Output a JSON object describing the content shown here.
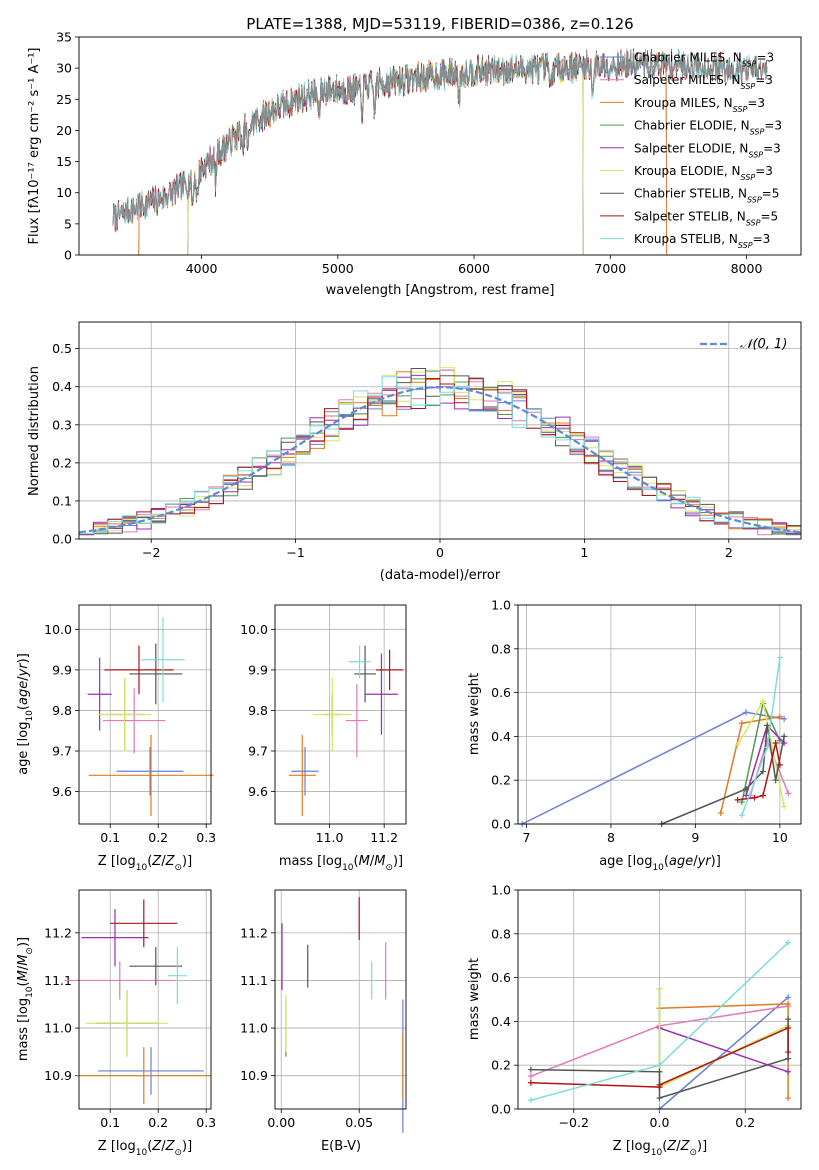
{
  "figure": {
    "title": "PLATE=1388, MJD=53119, FIBERID=0386, z=0.126",
    "colors": {
      "Chabrier MILES": "#6a7fd8",
      "Salpeter MILES": "#e07ab8",
      "Kroupa MILES": "#e07b20",
      "Chabrier ELODIE": "#4f9a4f",
      "Salpeter ELODIE": "#9a2fb4",
      "Kroupa ELODIE": "#d8e560",
      "Chabrier STELIB": "#555555",
      "Salpeter STELIB": "#b01414",
      "Kroupa STELIB": "#7ddbe0"
    },
    "legend_order": [
      "Chabrier MILES",
      "Salpeter MILES",
      "Kroupa MILES",
      "Chabrier ELODIE",
      "Salpeter ELODIE",
      "Kroupa ELODIE",
      "Chabrier STELIB",
      "Salpeter STELIB",
      "Kroupa STELIB"
    ],
    "legend_labels": {
      "Chabrier MILES": [
        "Chabrier MILES, N",
        "SSP",
        "=3"
      ],
      "Salpeter MILES": [
        "Salpeter MILES, N",
        "SSP",
        "=3"
      ],
      "Kroupa MILES": [
        "Kroupa MILES, N",
        "SSP",
        "=3"
      ],
      "Chabrier ELODIE": [
        "Chabrier ELODIE, N",
        "SSP",
        "=3"
      ],
      "Salpeter ELODIE": [
        "Salpeter ELODIE, N",
        "SSP",
        "=3"
      ],
      "Kroupa ELODIE": [
        "Kroupa ELODIE, N",
        "SSP",
        "=3"
      ],
      "Chabrier STELIB": [
        "Chabrier STELIB, N",
        "SSP",
        "=5"
      ],
      "Salpeter STELIB": [
        "Salpeter STELIB, N",
        "SSP",
        "=5"
      ],
      "Kroupa STELIB": [
        "Kroupa STELIB, N",
        "SSP",
        "=3"
      ]
    }
  },
  "chart_data": [
    {
      "id": "spectrum",
      "type": "line",
      "xlabel": "wavelength [Angstrom, rest frame]",
      "ylabel": "Flux [fλ10⁻¹⁷ erg cm⁻² s⁻¹ A⁻¹]",
      "xlim": [
        3100,
        8400
      ],
      "ylim": [
        0,
        35
      ],
      "xticks": [
        4000,
        5000,
        6000,
        7000,
        8000
      ],
      "yticks": [
        0,
        5,
        10,
        15,
        20,
        25,
        30,
        35
      ],
      "data_range": [
        3350,
        8150
      ],
      "continuum": [
        [
          3350,
          6
        ],
        [
          3500,
          7.5
        ],
        [
          3700,
          9
        ],
        [
          3900,
          11.5
        ],
        [
          4100,
          16
        ],
        [
          4300,
          20
        ],
        [
          4500,
          23
        ],
        [
          4700,
          25
        ],
        [
          4900,
          26.5
        ],
        [
          5100,
          26.5
        ],
        [
          5300,
          27.5
        ],
        [
          5600,
          28.5
        ],
        [
          6000,
          29.5
        ],
        [
          6500,
          30
        ],
        [
          7000,
          30.5
        ],
        [
          7500,
          30.5
        ],
        [
          8150,
          29.5
        ]
      ],
      "noise": 2,
      "model_ranges": {
        "Chabrier MILES": [
          3540,
          7410
        ],
        "Salpeter MILES": [
          3540,
          7410
        ],
        "Kroupa MILES": [
          3540,
          7410
        ],
        "Chabrier ELODIE": [
          3900,
          6800
        ],
        "Salpeter ELODIE": [
          3900,
          6800
        ],
        "Kroupa ELODIE": [
          3900,
          6800
        ],
        "Chabrier STELIB": [
          3350,
          8150
        ],
        "Salpeter STELIB": [
          3350,
          8150
        ],
        "Kroupa STELIB": [
          3350,
          8150
        ]
      },
      "legend_position": "right"
    },
    {
      "id": "residuals",
      "type": "histogram",
      "xlabel": "(data-model)/error",
      "ylabel": "Normed distribution",
      "xlim": [
        -2.5,
        2.5
      ],
      "ylim": [
        0,
        0.57
      ],
      "xticks": [
        -2,
        -1,
        0,
        1,
        2
      ],
      "yticks": [
        0.0,
        0.1,
        0.2,
        0.3,
        0.4,
        0.5
      ],
      "bin_width": 0.1,
      "reference_curve": "gaussian N(0,1)",
      "legend": "𝒩(0, 1)",
      "legend_position": "top-right",
      "grid": true
    },
    {
      "id": "age_vs_Z",
      "type": "errorbar",
      "xlabel": "Z [log10(Z/Z⊙)]",
      "ylabel": "age [log10(age/yr)]",
      "xlim": [
        0.035,
        0.31
      ],
      "ylim": [
        9.52,
        10.06
      ],
      "xticks": [
        0.1,
        0.2,
        0.3
      ],
      "yticks": [
        9.6,
        9.7,
        9.8,
        9.9,
        10.0
      ],
      "points": {
        "Chabrier MILES": {
          "x": 0.183,
          "xerr": 0.07,
          "y": 9.65,
          "yerr": 0.06
        },
        "Salpeter MILES": {
          "x": 0.15,
          "xerr": 0.065,
          "y": 9.775,
          "yerr": 0.08
        },
        "Kroupa MILES": {
          "x": 0.185,
          "xerr": 0.13,
          "y": 9.64,
          "yerr": 0.1
        },
        "Chabrier ELODIE": {
          "x": 0.13,
          "xerr": 0.04,
          "y": 9.79,
          "yerr": 0.09
        },
        "Salpeter ELODIE": {
          "x": 0.078,
          "xerr": 0.025,
          "y": 9.84,
          "yerr": 0.09
        },
        "Kroupa ELODIE": {
          "x": 0.13,
          "xerr": 0.055,
          "y": 9.79,
          "yerr": 0.09
        },
        "Chabrier STELIB": {
          "x": 0.195,
          "xerr": 0.055,
          "y": 9.89,
          "yerr": 0.075
        },
        "Salpeter STELIB": {
          "x": 0.16,
          "xerr": 0.072,
          "y": 9.9,
          "yerr": 0.06
        },
        "Kroupa STELIB": {
          "x": 0.21,
          "xerr": 0.045,
          "y": 9.925,
          "yerr": 0.105
        }
      }
    },
    {
      "id": "age_vs_mass",
      "type": "errorbar",
      "xlabel": "mass [log10(M/M⊙)]",
      "ylabel": "",
      "xlim": [
        10.8,
        11.28
      ],
      "ylim": [
        9.52,
        10.06
      ],
      "xticks": [
        11.0,
        11.2
      ],
      "yticks": [
        9.6,
        9.7,
        9.8,
        9.9,
        10.0
      ],
      "points": {
        "Chabrier MILES": {
          "x": 10.91,
          "xerr": 0.05,
          "y": 9.65,
          "yerr": 0.06
        },
        "Salpeter MILES": {
          "x": 11.1,
          "xerr": 0.04,
          "y": 9.775,
          "yerr": 0.09
        },
        "Kroupa MILES": {
          "x": 10.9,
          "xerr": 0.05,
          "y": 9.64,
          "yerr": 0.1
        },
        "Chabrier ELODIE": {
          "x": 11.01,
          "xerr": 0.03,
          "y": 9.79,
          "yerr": 0.05
        },
        "Salpeter ELODIE": {
          "x": 11.19,
          "xerr": 0.06,
          "y": 9.84,
          "yerr": 0.1
        },
        "Kroupa ELODIE": {
          "x": 11.01,
          "xerr": 0.07,
          "y": 9.79,
          "yerr": 0.09
        },
        "Chabrier STELIB": {
          "x": 11.13,
          "xerr": 0.04,
          "y": 9.89,
          "yerr": 0.07
        },
        "Salpeter STELIB": {
          "x": 11.22,
          "xerr": 0.05,
          "y": 9.9,
          "yerr": 0.05
        },
        "Kroupa STELIB": {
          "x": 11.11,
          "xerr": 0.04,
          "y": 9.92,
          "yerr": 0.04
        }
      }
    },
    {
      "id": "mass_weight_vs_age",
      "type": "line",
      "xlabel": "age [log10(age/yr)]",
      "ylabel": "mass weight",
      "xlim": [
        6.9,
        10.25
      ],
      "ylim": [
        0,
        1
      ],
      "xticks": [
        7,
        8,
        9,
        10
      ],
      "yticks": [
        0.0,
        0.2,
        0.4,
        0.6,
        0.8,
        1.0
      ],
      "grid": true,
      "series": {
        "Chabrier MILES": [
          [
            6.95,
            0.0
          ],
          [
            9.6,
            0.51
          ],
          [
            10.05,
            0.48
          ]
        ],
        "Salpeter MILES": [
          [
            9.65,
            0.13
          ],
          [
            9.85,
            0.38
          ],
          [
            10.1,
            0.14
          ]
        ],
        "Kroupa MILES": [
          [
            9.3,
            0.05
          ],
          [
            9.55,
            0.46
          ],
          [
            10.0,
            0.49
          ]
        ],
        "Chabrier ELODIE": [
          [
            9.55,
            0.1
          ],
          [
            9.8,
            0.55
          ],
          [
            10.0,
            0.38
          ]
        ],
        "Salpeter ELODIE": [
          [
            9.6,
            0.13
          ],
          [
            9.85,
            0.45
          ],
          [
            10.05,
            0.37
          ]
        ],
        "Kroupa ELODIE": [
          [
            9.5,
            0.36
          ],
          [
            9.8,
            0.56
          ],
          [
            10.05,
            0.08
          ]
        ],
        "Chabrier STELIB": [
          [
            8.6,
            0.0
          ],
          [
            9.6,
            0.16
          ],
          [
            9.8,
            0.24
          ],
          [
            9.85,
            0.45
          ],
          [
            9.95,
            0.2
          ],
          [
            10.05,
            0.4
          ]
        ],
        "Salpeter STELIB": [
          [
            9.5,
            0.11
          ],
          [
            9.7,
            0.12
          ],
          [
            9.8,
            0.13
          ],
          [
            9.95,
            0.37
          ],
          [
            10.0,
            0.27
          ]
        ],
        "Kroupa STELIB": [
          [
            9.55,
            0.04
          ],
          [
            9.85,
            0.35
          ],
          [
            10.0,
            0.76
          ]
        ]
      }
    },
    {
      "id": "mass_vs_Z",
      "type": "errorbar",
      "xlabel": "Z [log10(Z/Z⊙)]",
      "ylabel": "mass [log10(M/M⊙)]",
      "xlim": [
        0.035,
        0.31
      ],
      "ylim": [
        10.83,
        11.29
      ],
      "xticks": [
        0.1,
        0.2,
        0.3
      ],
      "yticks": [
        10.9,
        11.0,
        11.1,
        11.2
      ],
      "points": {
        "Chabrier MILES": {
          "x": 0.185,
          "xerr": 0.11,
          "y": 10.91,
          "yerr": 0.05
        },
        "Salpeter MILES": {
          "x": 0.12,
          "xerr": 0.115,
          "y": 11.1,
          "yerr": 0.04
        },
        "Kroupa MILES": {
          "x": 0.17,
          "xerr": 0.14,
          "y": 10.9,
          "yerr": 0.06
        },
        "Chabrier ELODIE": {
          "x": 0.135,
          "xerr": 0.065,
          "y": 11.01,
          "yerr": 0.07
        },
        "Salpeter ELODIE": {
          "x": 0.11,
          "xerr": 0.07,
          "y": 11.19,
          "yerr": 0.06
        },
        "Kroupa ELODIE": {
          "x": 0.135,
          "xerr": 0.085,
          "y": 11.01,
          "yerr": 0.07
        },
        "Chabrier STELIB": {
          "x": 0.195,
          "xerr": 0.055,
          "y": 11.13,
          "yerr": 0.04
        },
        "Salpeter STELIB": {
          "x": 0.17,
          "xerr": 0.07,
          "y": 11.22,
          "yerr": 0.05
        },
        "Kroupa STELIB": {
          "x": 0.24,
          "xerr": 0.02,
          "y": 11.11,
          "yerr": 0.06
        }
      }
    },
    {
      "id": "mass_vs_ebv",
      "type": "errorbar",
      "xlabel": "E(B-V)",
      "ylabel": "",
      "xlim": [
        -0.004,
        0.08
      ],
      "ylim": [
        10.83,
        11.29
      ],
      "xticks": [
        0.0,
        0.05
      ],
      "yticks": [
        10.9,
        11.0,
        11.1,
        11.2
      ],
      "points": {
        "Chabrier MILES": {
          "x": 0.078,
          "xerr": 0,
          "y": 10.92,
          "yerr": 0.14
        },
        "Salpeter MILES": {
          "x": 0.067,
          "xerr": 0,
          "y": 11.12,
          "yerr": 0.06
        },
        "Kroupa MILES": {
          "x": 0.078,
          "xerr": 0,
          "y": 10.92,
          "yerr": 0.07
        },
        "Chabrier ELODIE": {
          "x": 0.003,
          "xerr": 0,
          "y": 11.0,
          "yerr": 0.06
        },
        "Salpeter ELODIE": {
          "x": 0.0005,
          "xerr": 0,
          "y": 11.15,
          "yerr": 0.07
        },
        "Kroupa ELODIE": {
          "x": 0.003,
          "xerr": 0,
          "y": 11.01,
          "yerr": 0.06
        },
        "Chabrier STELIB": {
          "x": 0.017,
          "xerr": 0,
          "y": 11.13,
          "yerr": 0.045
        },
        "Salpeter STELIB": {
          "x": 0.05,
          "xerr": 0,
          "y": 11.23,
          "yerr": 0.045
        },
        "Kroupa STELIB": {
          "x": 0.058,
          "xerr": 0,
          "y": 11.1,
          "yerr": 0.04
        }
      }
    },
    {
      "id": "mass_weight_vs_Z",
      "type": "line",
      "xlabel": "Z [log10(Z/Z⊙)]",
      "ylabel": "mass weight",
      "xlim": [
        -0.33,
        0.33
      ],
      "ylim": [
        0,
        1
      ],
      "xticks": [
        -0.2,
        0.0,
        0.2
      ],
      "yticks": [
        0.0,
        0.2,
        0.4,
        0.6,
        0.8,
        1.0
      ],
      "grid": true,
      "series": {
        "Chabrier MILES": [
          [
            0.0,
            0.0
          ],
          [
            0.3,
            0.51
          ]
        ],
        "Salpeter MILES": [
          [
            -0.3,
            0.15
          ],
          [
            0.0,
            0.38
          ],
          [
            0.3,
            0.47
          ]
        ],
        "Kroupa MILES": [
          [
            0.0,
            0.46
          ],
          [
            0.3,
            0.48
          ],
          [
            0.3,
            0.05
          ]
        ],
        "Chabrier ELODIE": [
          [
            0.0,
            0.55
          ],
          [
            0.0,
            0.1
          ],
          [
            0.3,
            0.38
          ]
        ],
        "Salpeter ELODIE": [
          [
            0.0,
            0.37
          ],
          [
            0.3,
            0.17
          ]
        ],
        "Kroupa ELODIE": [
          [
            0.0,
            0.55
          ],
          [
            0.0,
            0.1
          ],
          [
            0.3,
            0.38
          ]
        ],
        "Chabrier STELIB": [
          [
            -0.3,
            0.18
          ],
          [
            0.0,
            0.17
          ],
          [
            0.0,
            0.05
          ],
          [
            0.3,
            0.23
          ],
          [
            0.3,
            0.41
          ]
        ],
        "Salpeter STELIB": [
          [
            -0.3,
            0.12
          ],
          [
            0.0,
            0.1
          ],
          [
            0.0,
            0.11
          ],
          [
            0.3,
            0.37
          ],
          [
            0.3,
            0.26
          ]
        ],
        "Kroupa STELIB": [
          [
            -0.3,
            0.04
          ],
          [
            0.0,
            0.2
          ],
          [
            0.3,
            0.76
          ]
        ]
      }
    }
  ]
}
